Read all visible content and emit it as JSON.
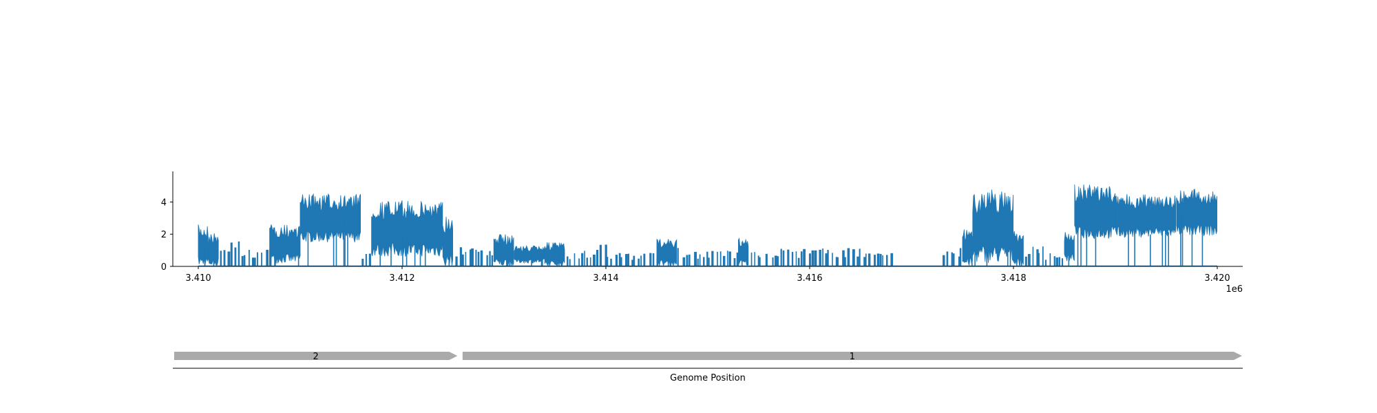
{
  "chart_data": [
    {
      "type": "area",
      "title": "",
      "xlabel": "",
      "ylabel": "",
      "x_offset_label": "1e6",
      "xlim": [
        3.40975,
        3.42025
      ],
      "ylim": [
        0,
        5.9
      ],
      "xticks": [
        {
          "value": 3.41,
          "label": "3.410"
        },
        {
          "value": 3.412,
          "label": "3.412"
        },
        {
          "value": 3.414,
          "label": "3.414"
        },
        {
          "value": 3.416,
          "label": "3.416"
        },
        {
          "value": 3.418,
          "label": "3.418"
        },
        {
          "value": 3.42,
          "label": "3.420"
        }
      ],
      "yticks": [
        {
          "value": 0,
          "label": "0"
        },
        {
          "value": 2,
          "label": "2"
        },
        {
          "value": 4,
          "label": "4"
        }
      ],
      "grid": false,
      "series": [
        {
          "color": "#1f77b4",
          "regions": [
            {
              "x": [
                3.41,
                3.4101
              ],
              "low": 0.0,
              "high": 2.6,
              "dense": true
            },
            {
              "x": [
                3.4101,
                3.4102
              ],
              "low": 0.0,
              "high": 2.1,
              "dense": true
            },
            {
              "x": [
                3.4102,
                3.4104
              ],
              "low": 0.0,
              "high": 1.6,
              "dense": false
            },
            {
              "x": [
                3.4104,
                3.4107
              ],
              "low": 0.0,
              "high": 1.1,
              "dense": false
            },
            {
              "x": [
                3.4107,
                3.411
              ],
              "low": 0.2,
              "high": 2.6,
              "dense": true
            },
            {
              "x": [
                3.411,
                3.4116
              ],
              "low": 1.5,
              "high": 4.5,
              "dense": true
            },
            {
              "x": [
                3.4116,
                3.4117
              ],
              "low": 0.0,
              "high": 1.0,
              "dense": false
            },
            {
              "x": [
                3.4117,
                3.4124
              ],
              "low": 0.6,
              "high": 4.1,
              "dense": true
            },
            {
              "x": [
                3.4124,
                3.4125
              ],
              "low": 0.0,
              "high": 3.2,
              "dense": true
            },
            {
              "x": [
                3.4125,
                3.4128
              ],
              "low": 0.0,
              "high": 1.3,
              "dense": false
            },
            {
              "x": [
                3.4128,
                3.4129
              ],
              "low": 0.0,
              "high": 1.4,
              "dense": false
            },
            {
              "x": [
                3.4129,
                3.4131
              ],
              "low": 0.0,
              "high": 2.0,
              "dense": true
            },
            {
              "x": [
                3.4131,
                3.4134
              ],
              "low": 0.2,
              "high": 1.3,
              "dense": true
            },
            {
              "x": [
                3.4134,
                3.4136
              ],
              "low": 0.0,
              "high": 1.5,
              "dense": true
            },
            {
              "x": [
                3.4136,
                3.4139
              ],
              "low": 0.0,
              "high": 1.0,
              "dense": false
            },
            {
              "x": [
                3.4139,
                3.414
              ],
              "low": 0.0,
              "high": 1.4,
              "dense": false
            },
            {
              "x": [
                3.414,
                3.4145
              ],
              "low": 0.0,
              "high": 0.9,
              "dense": false
            },
            {
              "x": [
                3.4145,
                3.4147
              ],
              "low": 0.0,
              "high": 1.7,
              "dense": true
            },
            {
              "x": [
                3.4147,
                3.4148
              ],
              "low": 0.0,
              "high": 1.2,
              "dense": false
            },
            {
              "x": [
                3.4148,
                3.4153
              ],
              "low": 0.0,
              "high": 1.0,
              "dense": false
            },
            {
              "x": [
                3.4153,
                3.4154
              ],
              "low": 0.0,
              "high": 1.8,
              "dense": true
            },
            {
              "x": [
                3.4154,
                3.4156
              ],
              "low": 0.0,
              "high": 1.0,
              "dense": false
            },
            {
              "x": [
                3.4156,
                3.416
              ],
              "low": 0.0,
              "high": 1.1,
              "dense": false
            },
            {
              "x": [
                3.416,
                3.4164
              ],
              "low": 0.0,
              "high": 1.2,
              "dense": false
            },
            {
              "x": [
                3.4164,
                3.4168
              ],
              "low": 0.0,
              "high": 1.1,
              "dense": false
            },
            {
              "x": [
                3.4173,
                3.4175
              ],
              "low": 0.0,
              "high": 1.2,
              "dense": false
            },
            {
              "x": [
                3.4175,
                3.4176
              ],
              "low": 0.0,
              "high": 2.3,
              "dense": true
            },
            {
              "x": [
                3.4176,
                3.418
              ],
              "low": 0.2,
              "high": 4.8,
              "dense": true
            },
            {
              "x": [
                3.418,
                3.4181
              ],
              "low": 0.0,
              "high": 2.2,
              "dense": true
            },
            {
              "x": [
                3.4181,
                3.4183
              ],
              "low": 0.0,
              "high": 1.3,
              "dense": false
            },
            {
              "x": [
                3.4183,
                3.4185
              ],
              "low": 0.0,
              "high": 0.9,
              "dense": false
            },
            {
              "x": [
                3.4185,
                3.4186
              ],
              "low": 0.3,
              "high": 2.2,
              "dense": true
            },
            {
              "x": [
                3.4186,
                3.419
              ],
              "low": 1.7,
              "high": 5.1,
              "dense": true
            },
            {
              "x": [
                3.419,
                3.4196
              ],
              "low": 1.8,
              "high": 4.5,
              "dense": true
            },
            {
              "x": [
                3.4196,
                3.42
              ],
              "low": 1.9,
              "high": 4.8,
              "dense": true
            }
          ]
        }
      ]
    },
    {
      "type": "gene-track",
      "xlabel": "Genome Position",
      "xlim": [
        3.40975,
        3.42025
      ],
      "features": [
        {
          "label": "2",
          "start": 3.40975,
          "end": 3.41255,
          "color": "#aaaaaa"
        },
        {
          "label": "1",
          "start": 3.41258,
          "end": 3.42025,
          "color": "#aaaaaa"
        }
      ]
    }
  ]
}
